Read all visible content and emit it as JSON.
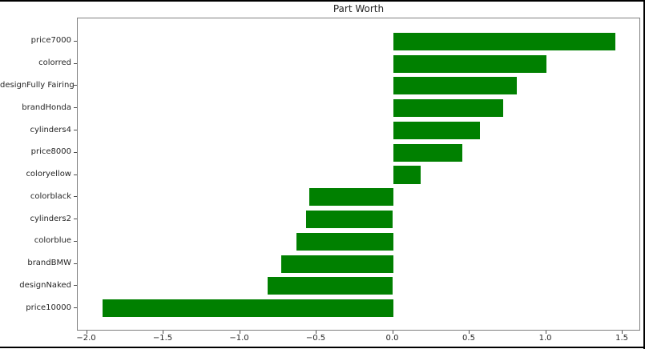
{
  "window": {
    "background": "#ffffff",
    "border_color": "#000000"
  },
  "chart_data": {
    "type": "bar",
    "orientation": "horizontal",
    "title": "Part Worth",
    "order": "top-to-bottom",
    "categories": [
      "price7000",
      "colorred",
      "designFully Fairing",
      "brandHonda",
      "cylinders4",
      "price8000",
      "coloryellow",
      "colorblack",
      "cylinders2",
      "colorblue",
      "brandBMW",
      "designNaked",
      "price10000"
    ],
    "values": [
      1.45,
      1.0,
      0.81,
      0.72,
      0.57,
      0.45,
      0.18,
      -0.55,
      -0.57,
      -0.63,
      -0.73,
      -0.82,
      -1.9
    ],
    "xlabel": "",
    "ylabel": "",
    "xlim": [
      -2.06,
      1.62
    ],
    "xticks": [
      -2.0,
      -1.5,
      -1.0,
      -0.5,
      0.0,
      0.5,
      1.0,
      1.5
    ],
    "xtick_labels": [
      "−2.0",
      "−1.5",
      "−1.0",
      "−0.5",
      "0.0",
      "0.5",
      "1.0",
      "1.5"
    ],
    "grid": false,
    "legend": false,
    "bar_color": "#008000",
    "spine_color": "#808080",
    "text_color": "#262626"
  }
}
